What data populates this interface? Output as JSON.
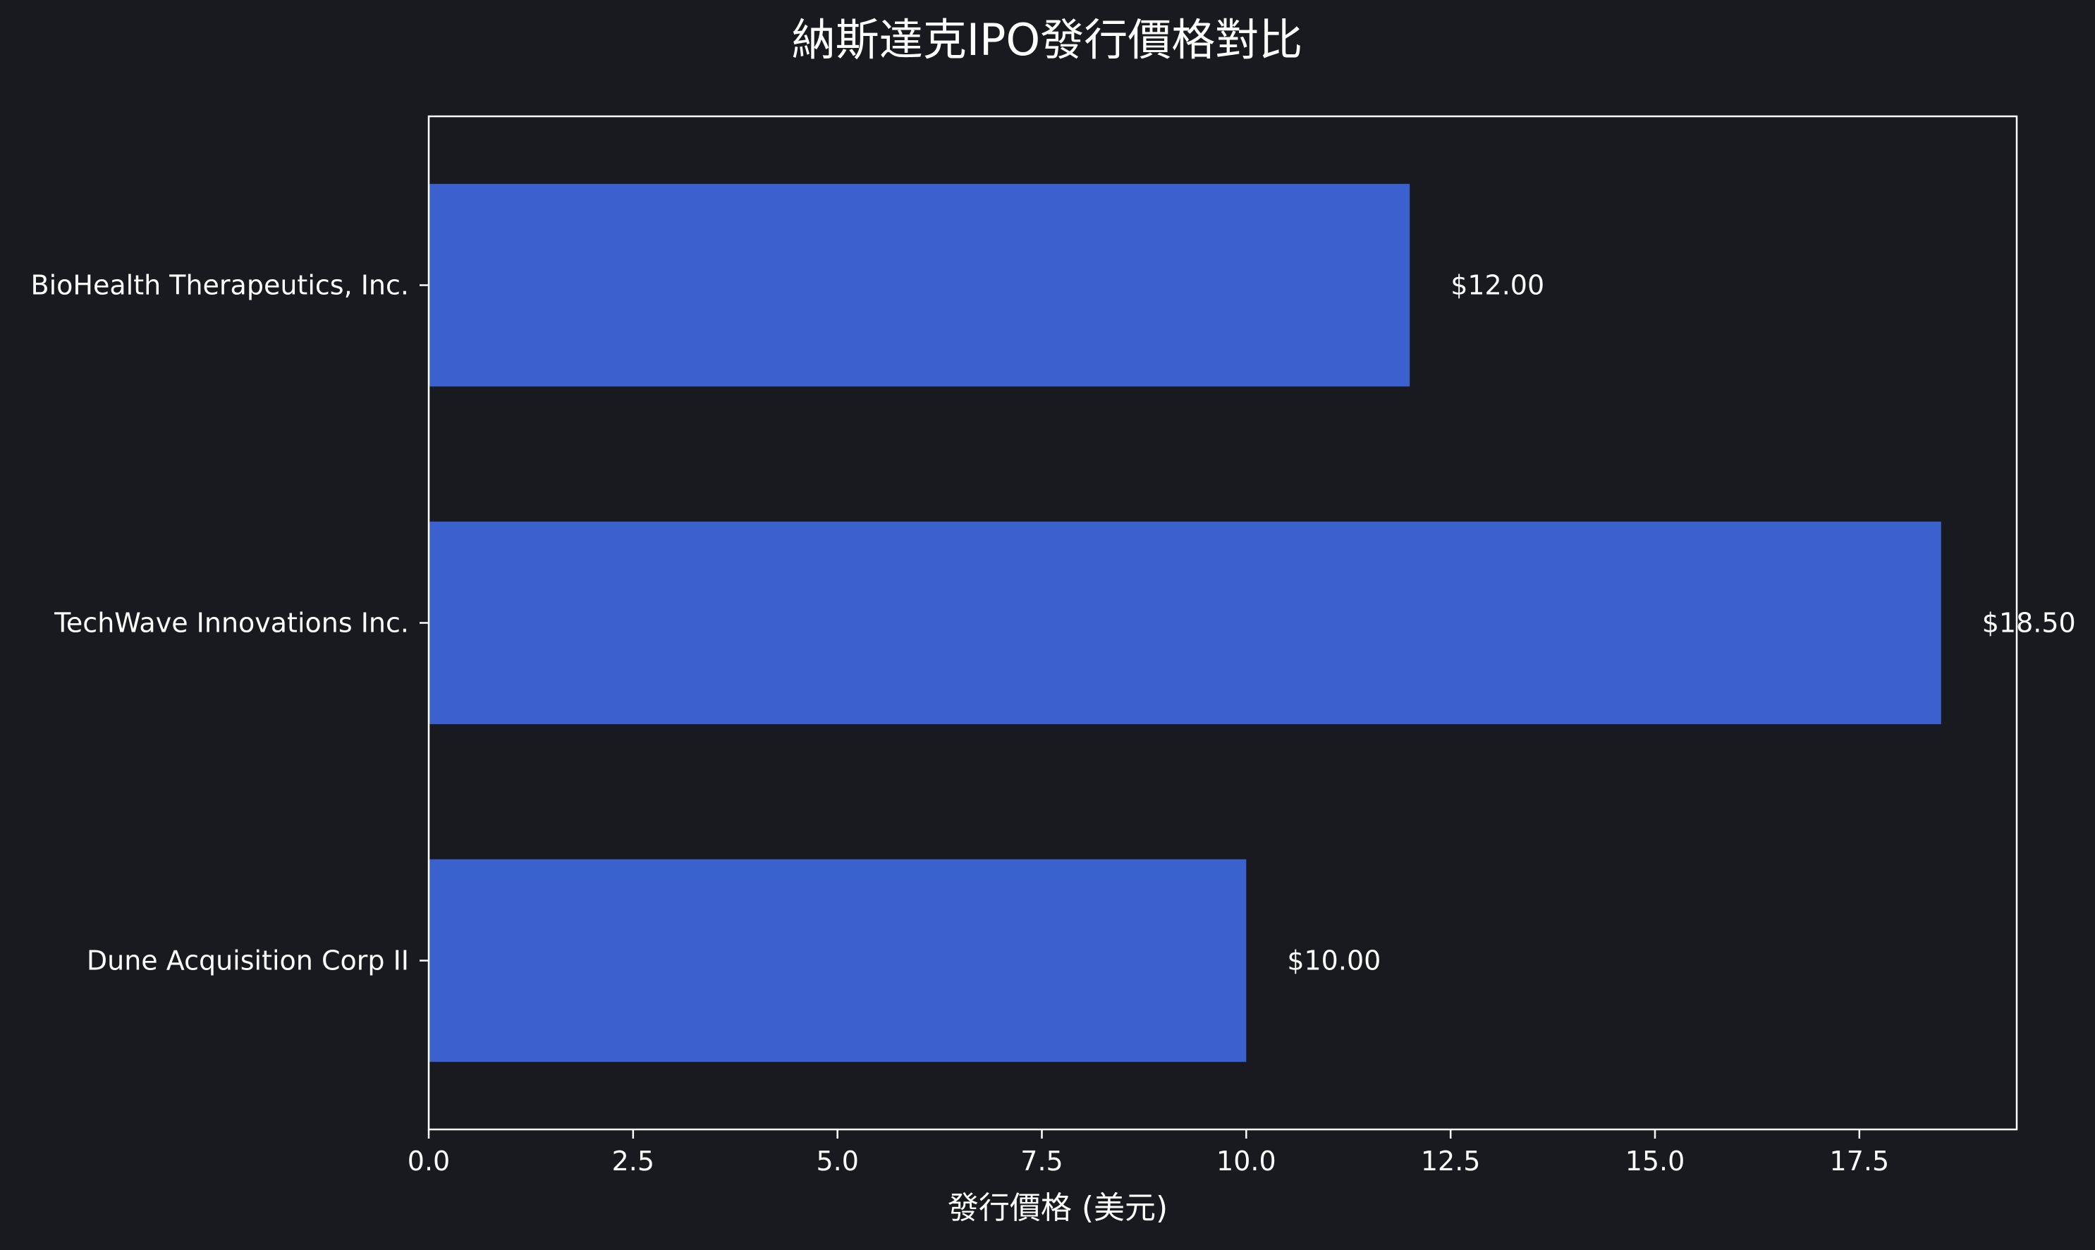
{
  "chart_data": {
    "type": "bar",
    "orientation": "horizontal",
    "title": "納斯達克IPO發行價格對比",
    "xlabel": "發行價格 (美元)",
    "ylabel": "",
    "categories": [
      "BioHealth Therapeutics, Inc.",
      "TechWave Innovations Inc.",
      "Dune Acquisition Corp II"
    ],
    "values": [
      12.0,
      18.5,
      10.0
    ],
    "value_labels": [
      "$12.00",
      "$18.50",
      "$10.00"
    ],
    "xlim": [
      0,
      19.425
    ],
    "xticks": [
      0.0,
      2.5,
      5.0,
      7.5,
      10.0,
      12.5,
      15.0,
      17.5
    ],
    "xtick_labels": [
      "0.0",
      "2.5",
      "5.0",
      "7.5",
      "10.0",
      "12.5",
      "15.0",
      "17.5"
    ],
    "grid": false,
    "legend": "none",
    "colors": {
      "background": "#181a20",
      "bar": "#3b61cf",
      "text": "#ffffff",
      "axis": "#ffffff"
    }
  }
}
